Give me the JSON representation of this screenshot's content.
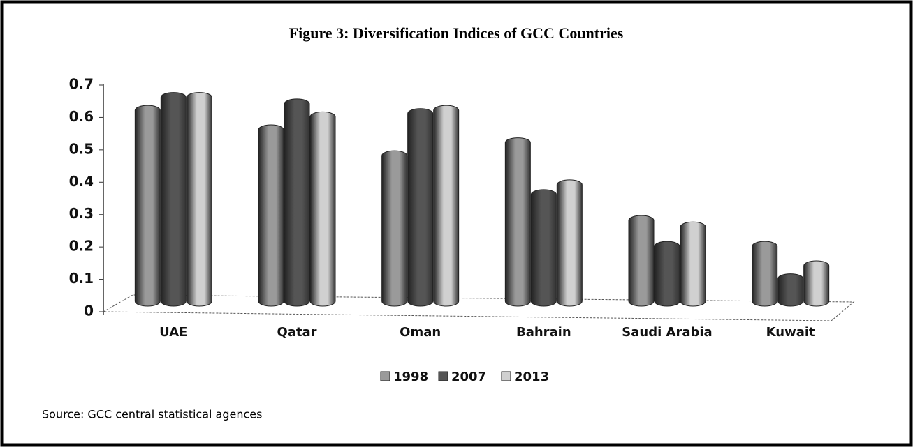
{
  "chart_data": {
    "type": "bar",
    "title": "Figure 3: Diversification Indices of GCC Countries",
    "categories": [
      "UAE",
      "Qatar",
      "Oman",
      "Bahrain",
      "Saudi Arabia",
      "Kuwait"
    ],
    "series": [
      {
        "name": "1998",
        "color": "#9a9a9a",
        "values": [
          0.62,
          0.56,
          0.48,
          0.52,
          0.28,
          0.2
        ]
      },
      {
        "name": "2007",
        "color": "#555555",
        "values": [
          0.66,
          0.64,
          0.61,
          0.36,
          0.2,
          0.1
        ]
      },
      {
        "name": "2013",
        "color": "#d0d0d0",
        "values": [
          0.66,
          0.6,
          0.62,
          0.39,
          0.26,
          0.14
        ]
      }
    ],
    "ylim": [
      0,
      0.7
    ],
    "yticks": [
      0,
      0.1,
      0.2,
      0.3,
      0.4,
      0.5,
      0.6,
      0.7
    ],
    "legend": "bottom",
    "source": "Source: GCC central statistical agences"
  }
}
